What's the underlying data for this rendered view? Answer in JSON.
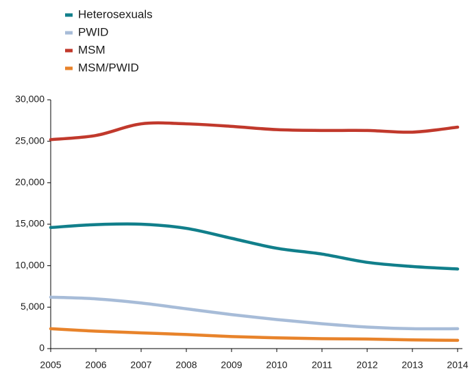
{
  "chart_data": {
    "type": "line",
    "x": [
      2005,
      2006,
      2007,
      2008,
      2009,
      2010,
      2011,
      2012,
      2013,
      2014
    ],
    "xlim": [
      2005,
      2014
    ],
    "ylim": [
      0,
      30000
    ],
    "yticks": [
      0,
      {
        "value": 5000,
        "label": "5,000"
      },
      {
        "value": 10000,
        "label": "10,000"
      },
      {
        "value": 15000,
        "label": "15,000"
      },
      {
        "value": 20000,
        "label": "20,000"
      },
      {
        "value": 25000,
        "label": "25,000"
      },
      {
        "value": 30000,
        "label": "30,000"
      }
    ],
    "legend": "top-left",
    "grid": false,
    "series": [
      {
        "name": "Heterosexuals",
        "color": "#117f8b",
        "values": [
          14600,
          14950,
          15000,
          14500,
          13300,
          12100,
          11400,
          10400,
          9900,
          9600
        ]
      },
      {
        "name": "PWID",
        "color": "#a7bcd8",
        "values": [
          6200,
          6000,
          5500,
          4800,
          4100,
          3500,
          3000,
          2600,
          2400,
          2400
        ]
      },
      {
        "name": "MSM",
        "color": "#c1392c",
        "values": [
          25200,
          25700,
          27100,
          27100,
          26800,
          26400,
          26300,
          26300,
          26100,
          26700
        ]
      },
      {
        "name": "MSM/PWID",
        "color": "#e8832b",
        "values": [
          2400,
          2100,
          1900,
          1700,
          1450,
          1300,
          1200,
          1150,
          1050,
          1000
        ]
      }
    ]
  }
}
